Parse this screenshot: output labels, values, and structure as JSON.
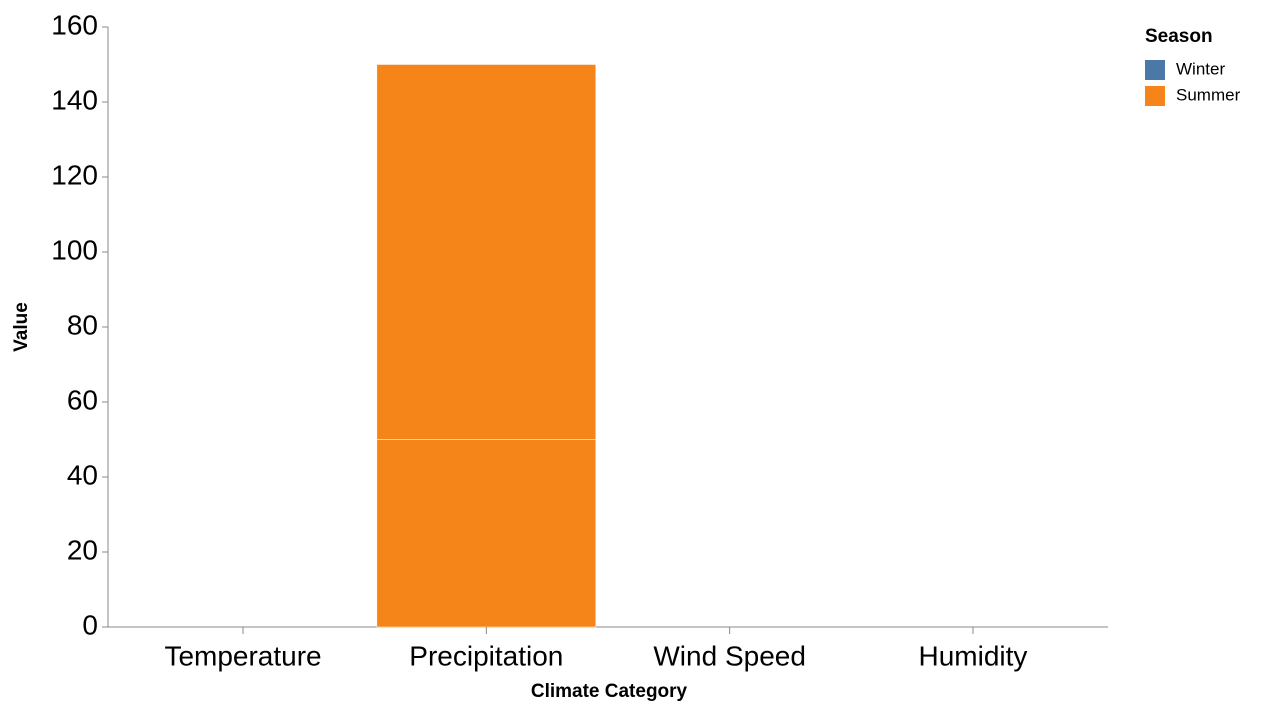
{
  "chart_data": {
    "type": "stacked-bar",
    "x_label": "Climate Category",
    "y_label": "Value",
    "categories": [
      "Temperature",
      "Precipitation",
      "Wind Speed",
      "Humidity"
    ],
    "series": [
      {
        "name": "Summer",
        "color": "#f58518",
        "values": [
          null,
          50,
          null,
          null
        ]
      },
      {
        "name": "Summer",
        "color": "#f58518",
        "values": [
          null,
          100,
          null,
          null
        ]
      }
    ],
    "legend": {
      "title": "Season",
      "entries": [
        {
          "name": "Winter",
          "color": "#4c78a8"
        },
        {
          "name": "Summer",
          "color": "#f58518"
        }
      ]
    },
    "ylim": [
      0,
      160
    ],
    "yticks": [
      0,
      20,
      40,
      60,
      80,
      100,
      120,
      140,
      160
    ],
    "grid": false
  }
}
